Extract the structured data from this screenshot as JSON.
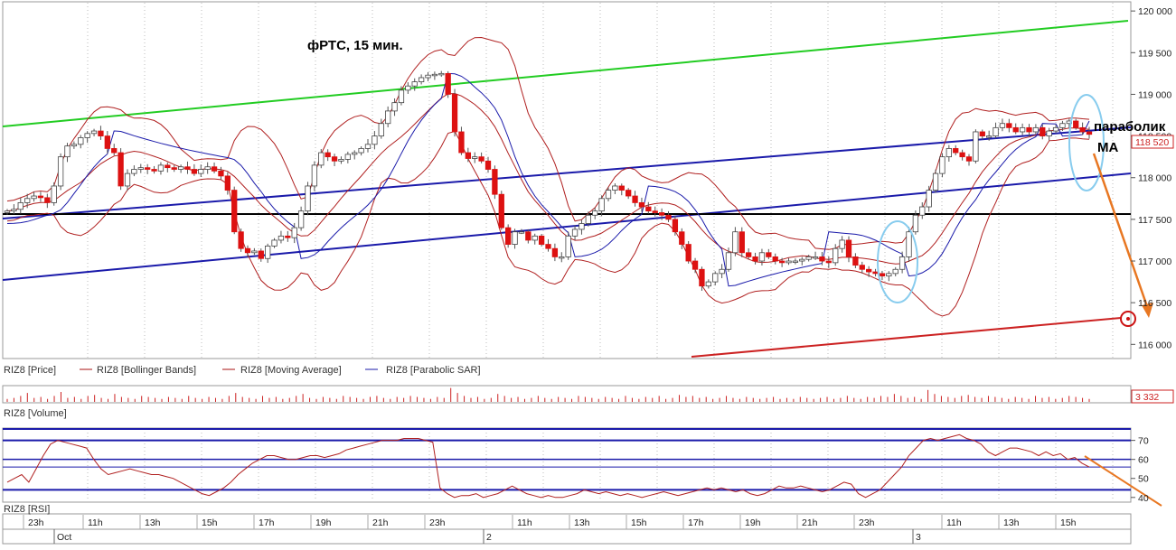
{
  "chart_data": {
    "type": "candlestick",
    "title": "фРТС, 15 мин.",
    "instrument": "RIZ8",
    "price_axis": {
      "ticks": [
        116000,
        116500,
        117000,
        117500,
        118000,
        118500,
        119000,
        119500,
        120000
      ],
      "tick_labels": [
        "116 000",
        "116 500",
        "117 000",
        "117 500",
        "118 000",
        "118 500",
        "119 000",
        "119 500",
        "120 000"
      ],
      "range": [
        115830,
        120110
      ]
    },
    "current_price_label": "118 520",
    "current_volume_label": "3 332",
    "rsi_axis": {
      "ticks": [
        40,
        50,
        60,
        70
      ],
      "range": [
        38,
        76
      ]
    },
    "time_axis": {
      "hour_labels": [
        "23h",
        "11h",
        "13h",
        "15h",
        "17h",
        "19h",
        "21h",
        "23h",
        "11h",
        "13h",
        "15h",
        "17h",
        "19h",
        "21h",
        "23h",
        "11h",
        "13h",
        "15h"
      ],
      "day_labels": [
        "Oct",
        "2",
        "3"
      ]
    },
    "legends": {
      "price": [
        "RIZ8 [Price]",
        "RIZ8 [Bollinger Bands]",
        "RIZ8 [Moving Average]",
        "RIZ8 [Parabolic SAR]"
      ],
      "volume": "RIZ8 [Volume]",
      "rsi": "RIZ8 [RSI]"
    },
    "annotations": {
      "text1": "параболик",
      "text2": "MA"
    },
    "price_path": [
      117600,
      117620,
      117700,
      117750,
      117780,
      117760,
      117700,
      117900,
      118250,
      118380,
      118400,
      118480,
      118530,
      118560,
      118500,
      118350,
      118300,
      117900,
      118050,
      118100,
      118120,
      118100,
      118080,
      118150,
      118120,
      118100,
      118130,
      118100,
      118050,
      118100,
      118130,
      118080,
      118020,
      117850,
      117350,
      117150,
      117100,
      117120,
      117030,
      117180,
      117250,
      117300,
      117280,
      117400,
      117600,
      117900,
      118150,
      118300,
      118250,
      118200,
      118220,
      118280,
      118300,
      118350,
      118400,
      118500,
      118650,
      118800,
      118900,
      119050,
      119100,
      119150,
      119200,
      119230,
      119240,
      119250,
      119000,
      118550,
      118300,
      118230,
      118250,
      118200,
      118100,
      117800,
      117400,
      117200,
      117350,
      117350,
      117250,
      117300,
      117200,
      117150,
      117050,
      117050,
      117300,
      117380,
      117450,
      117550,
      117600,
      117750,
      117850,
      117900,
      117850,
      117780,
      117700,
      117650,
      117600,
      117580,
      117550,
      117500,
      117350,
      117200,
      117000,
      116900,
      116700,
      116750,
      116850,
      116900,
      117100,
      117350,
      117100,
      117050,
      117000,
      117100,
      117050,
      117000,
      116980,
      117000,
      117000,
      117020,
      117050,
      117050,
      117000,
      116980,
      117150,
      117250,
      117050,
      116950,
      116900,
      116870,
      116850,
      116820,
      116850,
      116900,
      117050,
      117350,
      117550,
      117650,
      117850,
      118050,
      118250,
      118350,
      118300,
      118250,
      118200,
      118550,
      118500,
      118500,
      118600,
      118650,
      118600,
      118550,
      118600,
      118550,
      118600,
      118500,
      118560,
      118600,
      118650,
      118680,
      118600,
      118550,
      118520
    ],
    "volume_path": [
      3,
      4,
      6,
      9,
      4,
      5,
      3,
      6,
      10,
      4,
      5,
      3,
      6,
      7,
      4,
      3,
      8,
      5,
      4,
      3,
      6,
      5,
      4,
      3,
      5,
      4,
      3,
      6,
      4,
      3,
      5,
      4,
      3,
      6,
      9,
      5,
      4,
      3,
      6,
      4,
      5,
      3,
      4,
      6,
      8,
      4,
      3,
      5,
      4,
      3,
      6,
      5,
      4,
      3,
      5,
      6,
      4,
      3,
      5,
      4,
      6,
      5,
      4,
      3,
      5,
      4,
      14,
      9,
      6,
      4,
      5,
      3,
      4,
      8,
      6,
      4,
      5,
      3,
      4,
      6,
      4,
      3,
      5,
      4,
      3,
      6,
      5,
      4,
      3,
      5,
      4,
      3,
      6,
      4,
      3,
      5,
      4,
      6,
      3,
      4,
      7,
      5,
      6,
      4,
      5,
      3,
      4,
      6,
      4,
      3,
      5,
      4,
      3,
      4,
      5,
      3,
      4,
      3,
      5,
      4,
      3,
      4,
      5,
      3,
      4,
      6,
      4,
      3,
      5,
      4,
      6,
      5,
      8,
      6,
      4,
      5,
      3,
      12,
      8,
      6,
      5,
      4,
      6,
      7,
      5,
      4,
      6,
      5,
      4,
      3,
      5,
      4,
      3,
      6,
      4,
      5,
      3,
      4,
      6,
      5,
      4,
      3
    ],
    "rsi_path": [
      48,
      50,
      52,
      48,
      55,
      62,
      68,
      70,
      69,
      68,
      67,
      66,
      60,
      55,
      52,
      53,
      54,
      55,
      54,
      53,
      52,
      52,
      51,
      50,
      48,
      46,
      44,
      42,
      41,
      43,
      45,
      48,
      52,
      55,
      58,
      60,
      62,
      62,
      61,
      60,
      60,
      61,
      62,
      62,
      61,
      62,
      63,
      65,
      66,
      67,
      68,
      69,
      70,
      70,
      70,
      71,
      71,
      71,
      70,
      69,
      45,
      42,
      40,
      41,
      41,
      42,
      40,
      41,
      42,
      44,
      46,
      44,
      42,
      41,
      40,
      41,
      40,
      40,
      41,
      42,
      44,
      43,
      42,
      43,
      42,
      41,
      42,
      41,
      40,
      41,
      42,
      43,
      42,
      41,
      42,
      43,
      44,
      45,
      44,
      45,
      44,
      43,
      44,
      42,
      41,
      42,
      44,
      46,
      45,
      45,
      46,
      45,
      44,
      43,
      44,
      46,
      48,
      47,
      42,
      40,
      42,
      44,
      48,
      52,
      56,
      62,
      66,
      70,
      71,
      70,
      71,
      72,
      73,
      71,
      70,
      68,
      64,
      62,
      64,
      66,
      66,
      65,
      64,
      62,
      64,
      62,
      63,
      60,
      61,
      58,
      56
    ]
  }
}
